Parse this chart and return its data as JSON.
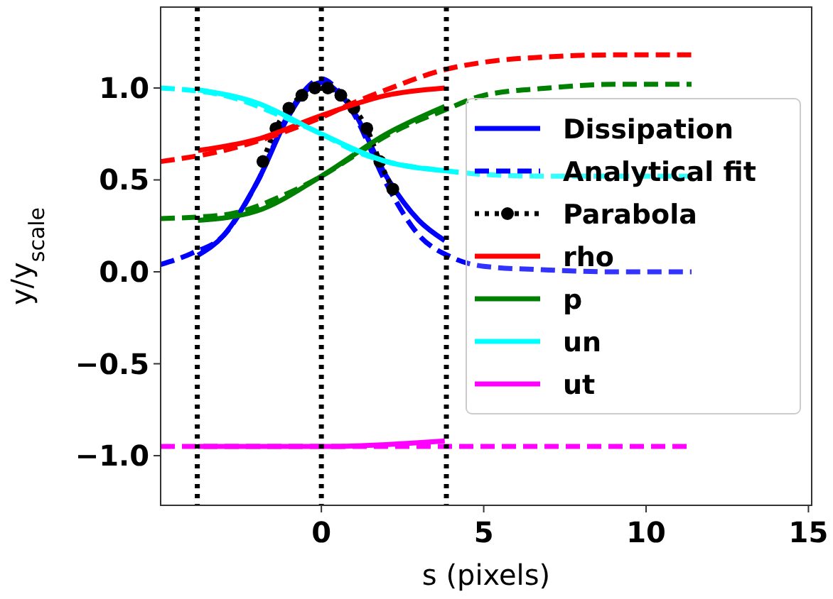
{
  "chart_data": {
    "type": "line",
    "xlabel": "s (pixels)",
    "ylabel": "y/y$_{scale}$",
    "xlim": [
      -4.95,
      15.1
    ],
    "ylim": [
      -1.27,
      1.44
    ],
    "xticks": [
      0,
      5,
      10,
      15
    ],
    "yticks": [
      {
        "value": -1,
        "label": "−1.0"
      },
      {
        "value": -0.5,
        "label": "−0.5"
      },
      {
        "value": 0,
        "label": "0.0"
      },
      {
        "value": 0.5,
        "label": "0.5"
      },
      {
        "value": 1,
        "label": "1.0"
      }
    ],
    "grid": false,
    "legend": "right",
    "series": [
      {
        "name": "Dissipation",
        "color": "#0000ff",
        "line_style": "solid",
        "x": [
          -3.8,
          -3,
          -2,
          -1,
          -0.5,
          0,
          0.5,
          1,
          2,
          3,
          3.8
        ],
        "values": [
          0.09,
          0.2,
          0.48,
          0.85,
          0.98,
          1.03,
          0.98,
          0.87,
          0.52,
          0.28,
          0.17
        ]
      },
      {
        "name": "Analytical fit",
        "color": "#0000ff",
        "line_style": "dashed",
        "x": [
          -4.95,
          -4,
          -3,
          -2,
          -1,
          -0.5,
          0,
          0.5,
          1,
          2,
          3,
          4,
          5,
          7,
          9,
          11.4
        ],
        "values": [
          0.04,
          0.1,
          0.2,
          0.48,
          0.86,
          0.99,
          1.05,
          0.99,
          0.86,
          0.48,
          0.2,
          0.08,
          0.03,
          0.01,
          0,
          0
        ]
      },
      {
        "name": "Parabola",
        "color": "#000000",
        "line_style": "dotted",
        "marker": "circle",
        "x": [
          -1.8,
          -1.4,
          -1,
          -0.6,
          -0.2,
          0.2,
          0.6,
          1,
          1.4,
          1.8,
          2.2
        ],
        "values": [
          0.6,
          0.78,
          0.89,
          0.96,
          1,
          1,
          0.96,
          0.89,
          0.78,
          0.6,
          0.45
        ]
      },
      {
        "name": "rho",
        "color": "#ff0000",
        "line_style": "solid",
        "x": [
          -3.8,
          -2,
          0,
          2,
          3.8
        ],
        "values": [
          0.66,
          0.72,
          0.85,
          0.96,
          1.0
        ]
      },
      {
        "color": "#ff0000",
        "line_style": "dashed",
        "x": [
          -4.95,
          -3,
          -1,
          0,
          1,
          2,
          3.8,
          5,
          7,
          9,
          11.4
        ],
        "values": [
          0.6,
          0.66,
          0.77,
          0.84,
          0.92,
          0.99,
          1.1,
          1.14,
          1.17,
          1.18,
          1.18
        ]
      },
      {
        "name": "p",
        "color": "#008000",
        "line_style": "solid",
        "x": [
          -3.8,
          -2,
          0,
          2,
          3.8
        ],
        "values": [
          0.28,
          0.33,
          0.52,
          0.75,
          0.9
        ]
      },
      {
        "color": "#008000",
        "line_style": "dashed",
        "x": [
          -4.95,
          -3,
          -1,
          0,
          1,
          2,
          3.8,
          5,
          7,
          9,
          11.4
        ],
        "values": [
          0.29,
          0.31,
          0.43,
          0.52,
          0.63,
          0.74,
          0.88,
          0.96,
          1.0,
          1.02,
          1.02
        ]
      },
      {
        "name": "un",
        "color": "#00ffff",
        "line_style": "solid",
        "x": [
          -3.8,
          -2,
          0,
          2,
          3.8
        ],
        "values": [
          0.99,
          0.92,
          0.75,
          0.6,
          0.55
        ]
      },
      {
        "color": "#00ffff",
        "line_style": "dashed",
        "x": [
          -4.95,
          -3,
          -1,
          0,
          1,
          2,
          3.8,
          5,
          7,
          9,
          11.4
        ],
        "values": [
          1.0,
          0.96,
          0.83,
          0.75,
          0.66,
          0.6,
          0.55,
          0.53,
          0.52,
          0.52,
          0.52
        ]
      },
      {
        "name": "ut",
        "color": "#ff00ff",
        "line_style": "solid",
        "x": [
          -3.8,
          0,
          2,
          3.8
        ],
        "values": [
          -0.95,
          -0.95,
          -0.94,
          -0.92
        ]
      },
      {
        "color": "#ff00ff",
        "line_style": "dashed",
        "x": [
          -4.95,
          0,
          5,
          11.4
        ],
        "values": [
          -0.95,
          -0.95,
          -0.95,
          -0.95
        ]
      }
    ],
    "ref_lines": [
      {
        "axis": "x",
        "value": -3.82,
        "color": "#000000",
        "line_style": "dotted"
      },
      {
        "axis": "x",
        "value": 0,
        "color": "#000000",
        "line_style": "dotted"
      },
      {
        "axis": "x",
        "value": 3.85,
        "color": "#000000",
        "line_style": "dotted"
      }
    ]
  }
}
